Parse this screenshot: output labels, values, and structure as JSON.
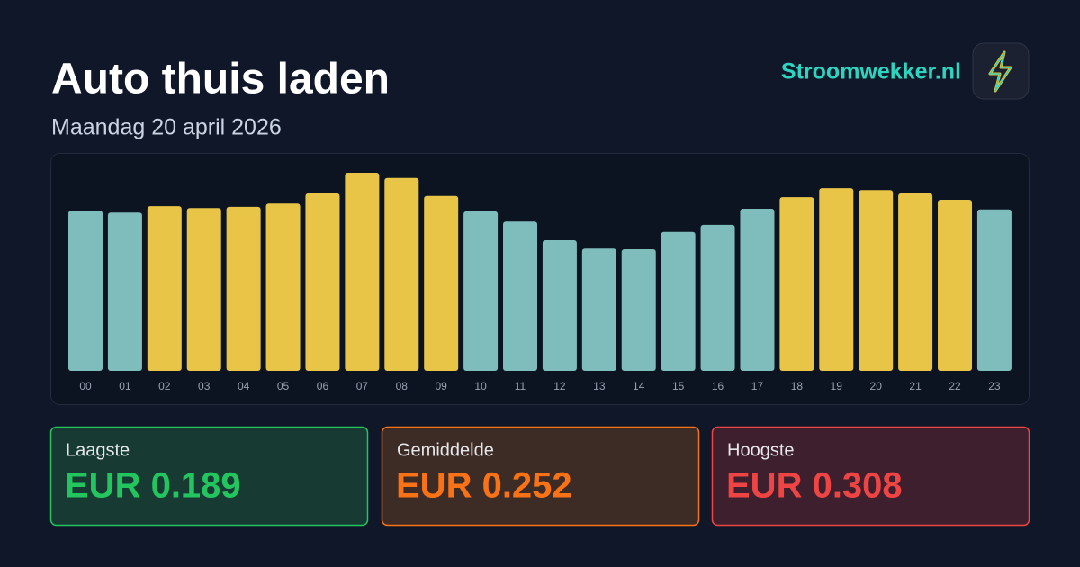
{
  "header": {
    "title": "Auto thuis laden",
    "subtitle": "Maandag 20 april 2026",
    "brand": "Stroomwekker.nl"
  },
  "chart_data": {
    "type": "bar",
    "categories": [
      "00",
      "01",
      "02",
      "03",
      "04",
      "05",
      "06",
      "07",
      "08",
      "09",
      "10",
      "11",
      "12",
      "13",
      "14",
      "15",
      "16",
      "17",
      "18",
      "19",
      "20",
      "21",
      "22",
      "23"
    ],
    "values": [
      0.249,
      0.246,
      0.256,
      0.253,
      0.255,
      0.26,
      0.276,
      0.308,
      0.3,
      0.272,
      0.248,
      0.232,
      0.203,
      0.19,
      0.189,
      0.216,
      0.227,
      0.252,
      0.27,
      0.284,
      0.281,
      0.276,
      0.266,
      0.251
    ],
    "colors": [
      "#7fbcbc",
      "#7fbcbc",
      "#e8c547",
      "#e8c547",
      "#e8c547",
      "#e8c547",
      "#e8c547",
      "#e8c547",
      "#e8c547",
      "#e8c547",
      "#7fbcbc",
      "#7fbcbc",
      "#7fbcbc",
      "#7fbcbc",
      "#7fbcbc",
      "#7fbcbc",
      "#7fbcbc",
      "#7fbcbc",
      "#e8c547",
      "#e8c547",
      "#e8c547",
      "#e8c547",
      "#e8c547",
      "#7fbcbc"
    ]
  },
  "cards": [
    {
      "label": "Laagste",
      "value": "EUR 0.189",
      "color": "#22c55e",
      "bg": "#173a33"
    },
    {
      "label": "Gemiddelde",
      "value": "EUR 0.252",
      "color": "#f97316",
      "bg": "#3d2b25"
    },
    {
      "label": "Hoogste",
      "value": "EUR 0.308",
      "color": "#ef4444",
      "bg": "#3e1f2d"
    }
  ]
}
